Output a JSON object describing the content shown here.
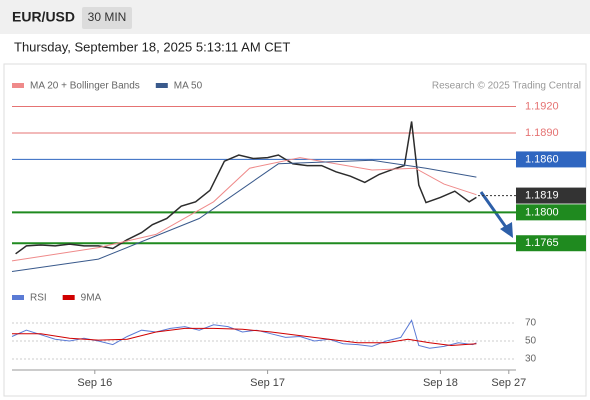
{
  "header": {
    "symbol": "EUR/USD",
    "interval": "30 MIN",
    "timestamp": "Thursday, September 18, 2025 5:13:11 AM CET"
  },
  "chart_data": [
    {
      "type": "line",
      "source": "Research © 2025 Trading Central",
      "ylim": [
        1.1729,
        1.1933
      ],
      "xlim": [
        0,
        140
      ],
      "levels": [
        {
          "value": 1.192,
          "label": "1.1920",
          "color": "#e57373",
          "boxed": false
        },
        {
          "value": 1.189,
          "label": "1.1890",
          "color": "#e57373",
          "boxed": false
        },
        {
          "value": 1.186,
          "label": "1.1860",
          "color": "#2f66c0",
          "boxed": true
        },
        {
          "value": 1.1819,
          "label": "1.1819",
          "color": "#333333",
          "boxed": true,
          "dotted": true
        },
        {
          "value": 1.18,
          "label": "1.1800",
          "color": "#1f8a1f",
          "boxed": true
        },
        {
          "value": 1.1765,
          "label": "1.1765",
          "color": "#1f8a1f",
          "boxed": true
        }
      ],
      "series": [
        {
          "color": "#2c2c2c",
          "x": [
            1,
            4,
            8,
            12,
            16,
            20,
            24,
            28,
            32,
            36,
            39,
            43,
            47,
            51,
            55,
            59,
            63,
            67,
            71,
            74,
            78,
            82,
            86,
            90,
            94,
            98,
            102,
            106,
            109,
            111,
            113,
            115,
            119,
            123,
            127,
            129
          ],
          "values": [
            1.1753,
            1.1762,
            1.1763,
            1.1762,
            1.1764,
            1.1762,
            1.1762,
            1.1759,
            1.1769,
            1.1777,
            1.1786,
            1.1793,
            1.1807,
            1.1812,
            1.1825,
            1.1858,
            1.1865,
            1.1861,
            1.1862,
            1.1865,
            1.1855,
            1.1853,
            1.1853,
            1.1846,
            1.1841,
            1.1834,
            1.1843,
            1.1849,
            1.1853,
            1.1903,
            1.1831,
            1.1811,
            1.1817,
            1.1824,
            1.1812,
            1.1817
          ]
        },
        {
          "name": "MA 20 + Bollinger Bands",
          "color": "#ef8a8a",
          "x": [
            0,
            24,
            40,
            56,
            66,
            80,
            100,
            112,
            120,
            129
          ],
          "values": [
            1.1745,
            1.176,
            1.1775,
            1.1812,
            1.185,
            1.1862,
            1.1848,
            1.185,
            1.1832,
            1.182
          ]
        },
        {
          "name": "MA 50",
          "color": "#3a5a8c",
          "x": [
            0,
            24,
            52,
            74,
            100,
            115,
            129
          ],
          "values": [
            1.1733,
            1.1747,
            1.1793,
            1.1855,
            1.1859,
            1.185,
            1.184
          ]
        }
      ]
    },
    {
      "type": "line",
      "ylim": [
        20,
        80
      ],
      "xlim": [
        0,
        140
      ],
      "yticks": [
        70,
        50,
        30
      ],
      "xticks": [
        {
          "value": 23,
          "label": "Sep 16"
        },
        {
          "value": 71,
          "label": "Sep 17"
        },
        {
          "value": 119,
          "label": "Sep 18"
        },
        {
          "value": 138,
          "label": "Sep 27"
        }
      ],
      "series": [
        {
          "name": "RSI",
          "color": "#5b7bd5",
          "x": [
            0,
            4,
            8,
            12,
            16,
            20,
            24,
            28,
            32,
            36,
            40,
            44,
            48,
            52,
            56,
            60,
            64,
            68,
            72,
            76,
            80,
            84,
            88,
            92,
            96,
            100,
            104,
            108,
            111,
            113,
            116,
            120,
            124,
            128,
            129
          ],
          "values": [
            55,
            62,
            57,
            52,
            50,
            53,
            50,
            46,
            55,
            62,
            60,
            64,
            66,
            62,
            68,
            66,
            60,
            62,
            58,
            54,
            55,
            50,
            52,
            47,
            46,
            44,
            50,
            54,
            73,
            45,
            42,
            44,
            48,
            46,
            48
          ]
        },
        {
          "name": "9MA",
          "color": "#d00000",
          "x": [
            0,
            8,
            16,
            24,
            32,
            40,
            48,
            56,
            64,
            72,
            80,
            88,
            96,
            104,
            110,
            116,
            122,
            129
          ],
          "values": [
            58,
            58,
            53,
            51,
            52,
            60,
            64,
            64,
            63,
            60,
            56,
            52,
            48,
            48,
            52,
            48,
            45,
            47
          ]
        }
      ]
    }
  ]
}
